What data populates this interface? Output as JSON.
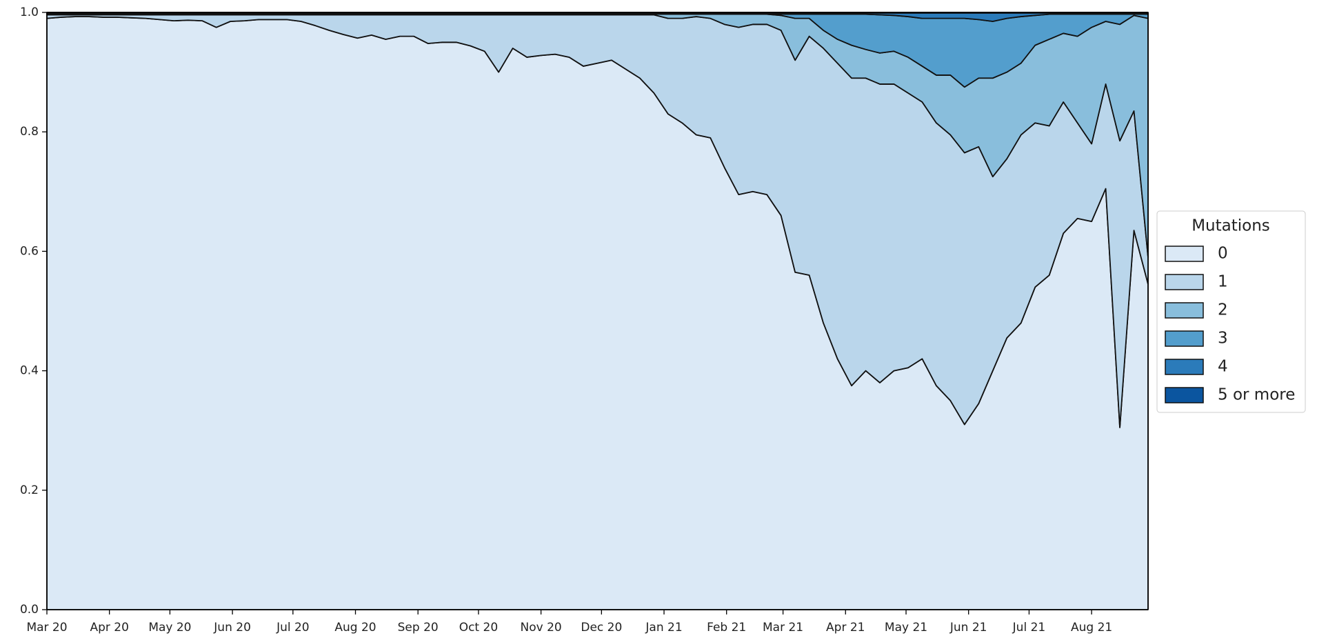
{
  "chart_data": {
    "type": "stacked_area",
    "x": [
      0,
      7,
      14,
      21,
      28,
      35,
      42,
      49,
      56,
      63,
      70,
      77,
      84,
      91,
      98,
      105,
      112,
      119,
      126,
      133,
      140,
      147,
      154,
      161,
      168,
      175,
      182,
      189,
      196,
      203,
      210,
      217,
      224,
      231,
      238,
      245,
      252,
      259,
      266,
      273,
      280,
      287,
      294,
      301,
      308,
      315,
      322,
      329,
      336,
      343,
      350,
      357,
      364,
      371,
      378,
      385,
      392,
      399,
      406,
      413,
      420,
      427,
      434,
      441,
      448,
      455,
      462,
      469,
      476,
      483,
      490,
      497,
      504,
      511,
      518,
      525,
      532,
      539,
      546
    ],
    "xlim": [
      0,
      546
    ],
    "xticks": [
      {
        "value": 0,
        "label": "Mar 20"
      },
      {
        "value": 31,
        "label": "Apr 20"
      },
      {
        "value": 61,
        "label": "May 20"
      },
      {
        "value": 92,
        "label": "Jun 20"
      },
      {
        "value": 122,
        "label": "Jul 20"
      },
      {
        "value": 153,
        "label": "Aug 20"
      },
      {
        "value": 184,
        "label": "Sep 20"
      },
      {
        "value": 214,
        "label": "Oct 20"
      },
      {
        "value": 245,
        "label": "Nov 20"
      },
      {
        "value": 275,
        "label": "Dec 20"
      },
      {
        "value": 306,
        "label": "Jan 21"
      },
      {
        "value": 337,
        "label": "Feb 21"
      },
      {
        "value": 365,
        "label": "Mar 21"
      },
      {
        "value": 396,
        "label": "Apr 21"
      },
      {
        "value": 426,
        "label": "May 21"
      },
      {
        "value": 457,
        "label": "Jun 21"
      },
      {
        "value": 487,
        "label": "Jul 21"
      },
      {
        "value": 518,
        "label": "Aug 21"
      }
    ],
    "ylim": [
      0,
      1
    ],
    "yticks": [
      {
        "value": 0,
        "label": "0.0"
      },
      0.2,
      0.4,
      0.6,
      0.8,
      {
        "value": 1,
        "label": "1.0"
      }
    ],
    "legend_title": "Mutations",
    "legend_position": "right",
    "series": [
      {
        "name": "0",
        "color": "#dbe9f6",
        "values": [
          0.99,
          0.992,
          0.993,
          0.993,
          0.992,
          0.992,
          0.991,
          0.99,
          0.988,
          0.986,
          0.987,
          0.986,
          0.975,
          0.985,
          0.986,
          0.988,
          0.988,
          0.988,
          0.985,
          0.978,
          0.97,
          0.963,
          0.957,
          0.962,
          0.955,
          0.96,
          0.96,
          0.948,
          0.95,
          0.95,
          0.944,
          0.935,
          0.9,
          0.94,
          0.925,
          0.928,
          0.93,
          0.925,
          0.91,
          0.915,
          0.92,
          0.905,
          0.89,
          0.865,
          0.83,
          0.815,
          0.795,
          0.79,
          0.74,
          0.695,
          0.7,
          0.695,
          0.66,
          0.565,
          0.56,
          0.48,
          0.42,
          0.375,
          0.4,
          0.38,
          0.4,
          0.405,
          0.42,
          0.375,
          0.35,
          0.31,
          0.345,
          0.4,
          0.455,
          0.48,
          0.54,
          0.56,
          0.63,
          0.655,
          0.65,
          0.705,
          0.305,
          0.635,
          0.545
        ]
      },
      {
        "name": "1",
        "color": "#bad6eb",
        "values": [
          0.006,
          0.004,
          0.003,
          0.003,
          0.004,
          0.004,
          0.005,
          0.006,
          0.008,
          0.01,
          0.009,
          0.01,
          0.021,
          0.011,
          0.01,
          0.008,
          0.008,
          0.008,
          0.011,
          0.018,
          0.026,
          0.033,
          0.039,
          0.034,
          0.041,
          0.036,
          0.036,
          0.048,
          0.046,
          0.046,
          0.052,
          0.061,
          0.096,
          0.056,
          0.071,
          0.068,
          0.066,
          0.071,
          0.086,
          0.081,
          0.076,
          0.091,
          0.106,
          0.131,
          0.16,
          0.175,
          0.198,
          0.2,
          0.24,
          0.28,
          0.28,
          0.285,
          0.31,
          0.355,
          0.4,
          0.46,
          0.495,
          0.515,
          0.49,
          0.5,
          0.48,
          0.46,
          0.43,
          0.44,
          0.445,
          0.455,
          0.43,
          0.325,
          0.3,
          0.315,
          0.275,
          0.25,
          0.22,
          0.16,
          0.13,
          0.175,
          0.48,
          0.2,
          0.045
        ]
      },
      {
        "name": "2",
        "color": "#89bedc",
        "values": [
          0.001,
          0.001,
          0.001,
          0.001,
          0.001,
          0.001,
          0.001,
          0.001,
          0.001,
          0.001,
          0.001,
          0.001,
          0.001,
          0.001,
          0.001,
          0.001,
          0.001,
          0.001,
          0.001,
          0.001,
          0.001,
          0.001,
          0.001,
          0.001,
          0.001,
          0.001,
          0.001,
          0.001,
          0.001,
          0.001,
          0.001,
          0.001,
          0.001,
          0.001,
          0.001,
          0.001,
          0.001,
          0.001,
          0.001,
          0.001,
          0.001,
          0.001,
          0.001,
          0.001,
          0.007,
          0.007,
          0.004,
          0.007,
          0.017,
          0.022,
          0.017,
          0.017,
          0.025,
          0.07,
          0.03,
          0.03,
          0.04,
          0.055,
          0.048,
          0.052,
          0.055,
          0.06,
          0.06,
          0.08,
          0.1,
          0.11,
          0.115,
          0.165,
          0.145,
          0.12,
          0.13,
          0.145,
          0.115,
          0.145,
          0.195,
          0.105,
          0.195,
          0.16,
          0.4
        ]
      },
      {
        "name": "3",
        "color": "#539ecd",
        "values": [
          0.001,
          0.001,
          0.001,
          0.001,
          0.001,
          0.001,
          0.001,
          0.001,
          0.001,
          0.001,
          0.001,
          0.001,
          0.001,
          0.001,
          0.001,
          0.001,
          0.001,
          0.001,
          0.001,
          0.001,
          0.001,
          0.001,
          0.001,
          0.001,
          0.001,
          0.001,
          0.001,
          0.001,
          0.001,
          0.001,
          0.001,
          0.001,
          0.001,
          0.001,
          0.001,
          0.001,
          0.001,
          0.001,
          0.001,
          0.001,
          0.001,
          0.001,
          0.001,
          0.001,
          0.001,
          0.001,
          0.001,
          0.001,
          0.001,
          0.001,
          0.001,
          0.001,
          0.002,
          0.007,
          0.007,
          0.027,
          0.042,
          0.052,
          0.059,
          0.064,
          0.06,
          0.068,
          0.08,
          0.095,
          0.095,
          0.115,
          0.098,
          0.095,
          0.09,
          0.078,
          0.05,
          0.042,
          0.032,
          0.037,
          0.022,
          0.012,
          0.017,
          0.002,
          0.007
        ]
      },
      {
        "name": "4",
        "color": "#2b7bba",
        "values": [
          0.001,
          0.001,
          0.001,
          0.001,
          0.001,
          0.001,
          0.001,
          0.001,
          0.001,
          0.001,
          0.001,
          0.001,
          0.001,
          0.001,
          0.001,
          0.001,
          0.001,
          0.001,
          0.001,
          0.001,
          0.001,
          0.001,
          0.001,
          0.001,
          0.001,
          0.001,
          0.001,
          0.001,
          0.001,
          0.001,
          0.001,
          0.001,
          0.001,
          0.001,
          0.001,
          0.001,
          0.001,
          0.001,
          0.001,
          0.001,
          0.001,
          0.001,
          0.001,
          0.001,
          0.001,
          0.001,
          0.001,
          0.001,
          0.001,
          0.001,
          0.001,
          0.001,
          0.002,
          0.002,
          0.002,
          0.002,
          0.002,
          0.002,
          0.002,
          0.003,
          0.004,
          0.006,
          0.009,
          0.009,
          0.009,
          0.009,
          0.011,
          0.014,
          0.009,
          0.006,
          0.004,
          0.002,
          0.002,
          0.002,
          0.002,
          0.002,
          0.002,
          0.002,
          0.002
        ]
      },
      {
        "name": "5 or more",
        "color": "#0b559f",
        "values": [
          0.001,
          0.001,
          0.001,
          0.001,
          0.001,
          0.001,
          0.001,
          0.001,
          0.001,
          0.001,
          0.001,
          0.001,
          0.001,
          0.001,
          0.001,
          0.001,
          0.001,
          0.001,
          0.001,
          0.001,
          0.001,
          0.001,
          0.001,
          0.001,
          0.001,
          0.001,
          0.001,
          0.001,
          0.001,
          0.001,
          0.001,
          0.001,
          0.001,
          0.001,
          0.001,
          0.001,
          0.001,
          0.001,
          0.001,
          0.001,
          0.001,
          0.001,
          0.001,
          0.001,
          0.001,
          0.001,
          0.001,
          0.001,
          0.001,
          0.001,
          0.001,
          0.001,
          0.001,
          0.001,
          0.001,
          0.001,
          0.001,
          0.001,
          0.001,
          0.001,
          0.001,
          0.001,
          0.001,
          0.001,
          0.001,
          0.001,
          0.001,
          0.001,
          0.001,
          0.001,
          0.001,
          0.001,
          0.001,
          0.001,
          0.001,
          0.001,
          0.001,
          0.001,
          0.001
        ]
      }
    ]
  }
}
